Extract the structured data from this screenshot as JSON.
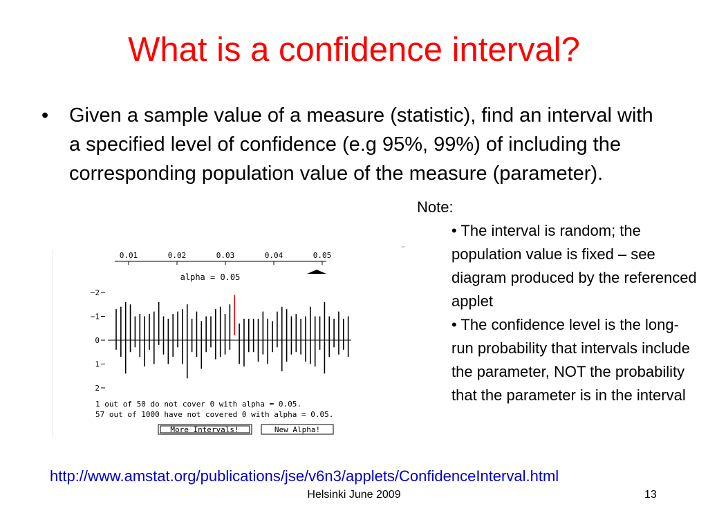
{
  "slide": {
    "title": "What is a confidence interval?",
    "bullet_symbol": "•",
    "bullet_text": "Given a sample value of a measure (statistic), find an interval with a specified level of confidence (e.g 95%, 99%) of including the corresponding population value of the measure (parameter).",
    "note": {
      "label": "Note:",
      "items": [
        "• The interval is random; the population value is fixed – see diagram produced by the referenced applet",
        "• The confidence level  is the long-run probability that intervals include the parameter, NOT the probability that the parameter is in the interval"
      ]
    },
    "url": "http://www.amstat.org/publications/jse/v6n3/applets/ConfidenceInterval.html",
    "footer": "Helsinki June 2009",
    "page_number": "13"
  },
  "applet": {
    "slider_ticks": [
      "0.01",
      "0.02",
      "0.03",
      "0.04",
      "0.05"
    ],
    "slider_value": 0.05,
    "alpha_label": "alpha = 0.05",
    "y_ticks": [
      "−2",
      "−1",
      "0",
      "1",
      "2"
    ],
    "status_line1": "1 out of 50 do not cover 0 with alpha = 0.05.",
    "status_line2": "57 out of 1000 have not covered 0 with alpha = 0.05.",
    "more_button": "More Intervals!",
    "new_alpha_button": "New Alpha!",
    "colors": {
      "covering": "#000000",
      "missing": "#ff0000"
    }
  },
  "chart_data": {
    "type": "interval",
    "ylim": [
      -2,
      2
    ],
    "y_ticks": [
      "−2",
      "−1",
      "0",
      "1",
      "2"
    ],
    "intervals": [
      [
        -1.3,
        0.4
      ],
      [
        -1.4,
        0.7
      ],
      [
        -1.6,
        1.4
      ],
      [
        -1.5,
        0.5
      ],
      [
        -1.0,
        0.3
      ],
      [
        -1.1,
        0.7
      ],
      [
        -1.0,
        1.1
      ],
      [
        -1.1,
        0.4
      ],
      [
        -1.2,
        1.0
      ],
      [
        -1.6,
        0.2
      ],
      [
        -1.0,
        0.6
      ],
      [
        -0.9,
        1.0
      ],
      [
        -1.1,
        0.7
      ],
      [
        -1.2,
        0.3
      ],
      [
        -1.3,
        1.0
      ],
      [
        -1.5,
        1.6
      ],
      [
        -0.9,
        0.5
      ],
      [
        -1.2,
        0.7
      ],
      [
        -0.8,
        1.2
      ],
      [
        -1.0,
        0.5
      ],
      [
        -1.0,
        0.3
      ],
      [
        -1.3,
        0.8
      ],
      [
        -1.4,
        0.7
      ],
      [
        -1.1,
        0.6
      ],
      [
        -1.5,
        0.4
      ],
      [
        -1.9,
        -0.2
      ],
      [
        -0.7,
        1.0
      ],
      [
        -0.9,
        1.1
      ],
      [
        -0.9,
        0.5
      ],
      [
        -0.9,
        0.5
      ],
      [
        -0.9,
        0.9
      ],
      [
        -1.2,
        0.6
      ],
      [
        -0.9,
        1.0
      ],
      [
        -0.8,
        0.5
      ],
      [
        -1.2,
        0.3
      ],
      [
        -1.4,
        1.3
      ],
      [
        -1.3,
        0.9
      ],
      [
        -1.0,
        0.6
      ],
      [
        -1.1,
        0.5
      ],
      [
        -0.9,
        0.6
      ],
      [
        -1.0,
        0.9
      ],
      [
        -1.4,
        1.0
      ],
      [
        -1.0,
        1.1
      ],
      [
        -1.0,
        0.4
      ],
      [
        -1.6,
        1.4
      ],
      [
        -1.0,
        0.7
      ],
      [
        -0.9,
        0.3
      ],
      [
        -1.2,
        0.6
      ],
      [
        -0.9,
        0.4
      ],
      [
        -1.0,
        0.7
      ]
    ]
  }
}
